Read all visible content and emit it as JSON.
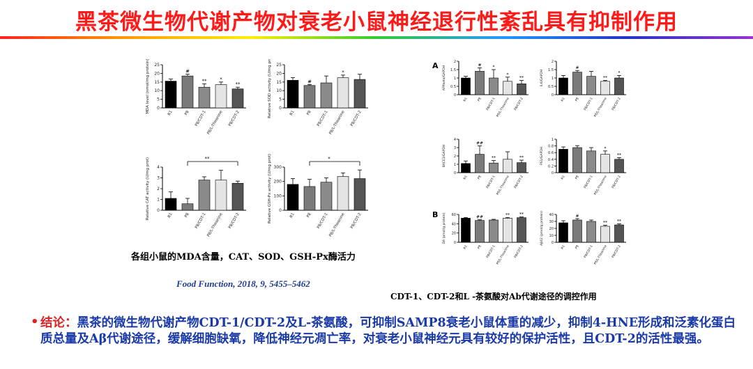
{
  "title": "黑茶微生物代谢产物对衰老小鼠神经退行性紊乱具有抑制作用",
  "left_caption": "各组小鼠的MDA含量，CAT、SOD、GSH-Px酶活力",
  "citation": "Food Function, 2018, 9, 5455–5462",
  "right_caption": "CDT-1、CDT-2和L -茶氨酸对Ab代谢途径的调控作用",
  "conclusion": {
    "keyword": "结论：",
    "text": "黑茶的微生物代谢产物CDT-1/CDT-2及L-茶氨酸，可抑制SAMP8衰老小鼠体重的减少，抑制4-HNE形成和泛素化蛋白质总量及Aβ代谢途径，缓解细胞缺氧，降低神经元凋亡率，对衰老小鼠神经元具有较好的保护活性，且CDT-2的活性最强。"
  },
  "panel_letters": [
    "A",
    "B"
  ],
  "colors": {
    "title": "#ff1a1a",
    "text_blue": "#1a3aa8",
    "citation": "#1f3c8f",
    "bullet": "#dd2222"
  },
  "chart_data": [
    {
      "type": "bar",
      "ylabel": "MDA level (nmol/mg protein)",
      "categories": [
        "R1",
        "P8",
        "P8/CDT-1",
        "P8/L-Theanine",
        "P8/CDT-2"
      ],
      "values": [
        15.5,
        18.5,
        12,
        13.5,
        11
      ],
      "errors": [
        1.2,
        1,
        2,
        1.5,
        1
      ],
      "annot": [
        "",
        "#",
        "**",
        "*",
        "**"
      ],
      "ylim": [
        0,
        25
      ],
      "yticks": [
        0,
        5,
        10,
        15,
        20,
        25
      ]
    },
    {
      "type": "bar",
      "ylabel": "Relative SOD activity (U/mg prot)",
      "categories": [
        "R1",
        "P8",
        "P8/CDT-1",
        "P8/L-Theanine",
        "P8/CDT-2"
      ],
      "values": [
        16,
        13,
        14.5,
        17.5,
        16.5
      ],
      "errors": [
        1.5,
        0.5,
        4,
        1.5,
        3
      ],
      "annot": [
        "",
        "#",
        "",
        "*",
        ""
      ],
      "ylim": [
        0,
        25
      ],
      "yticks": [
        0,
        5,
        10,
        15,
        20,
        25
      ]
    },
    {
      "type": "bar",
      "ylabel": "Relative CAT activity (U/mg prot)",
      "categories": [
        "R1",
        "P8",
        "P8/CDT-1",
        "P8/L-Theanine",
        "P8/CDT-2"
      ],
      "values": [
        1.1,
        0.6,
        2.8,
        2.8,
        2.5
      ],
      "errors": [
        0.6,
        0.5,
        0.3,
        0.9,
        0.2
      ],
      "annot": [
        "",
        "",
        "",
        "",
        ""
      ],
      "bracket_label": "**",
      "ylim": [
        0,
        4
      ],
      "yticks": [
        0,
        1,
        2,
        3,
        4
      ]
    },
    {
      "type": "bar",
      "ylabel": "Relative GSH-Px activity (U/mg prot)",
      "categories": [
        "R1",
        "P8",
        "P8/CDT-1",
        "P8/L-Theanine",
        "P8/CDT-2"
      ],
      "values": [
        180,
        165,
        195,
        235,
        220
      ],
      "errors": [
        40,
        50,
        30,
        25,
        60
      ],
      "annot": [
        "",
        "",
        "",
        "",
        ""
      ],
      "bracket_label": "*",
      "ylim": [
        0,
        300
      ],
      "yticks": [
        0,
        100,
        200,
        300
      ]
    },
    {
      "type": "bar",
      "ylabel": "APPbeta/GAPDH",
      "categories": [
        "R1",
        "P8",
        "P8/CDT-1",
        "P8/L-Theanine",
        "P8/CDT-2"
      ],
      "values": [
        1.0,
        1.4,
        1.0,
        0.8,
        0.65
      ],
      "errors": [
        0.1,
        0.2,
        0.5,
        0.25,
        0.2
      ],
      "annot": [
        "",
        "#",
        "*",
        "*",
        "**"
      ],
      "ylim": [
        0,
        2.0
      ],
      "yticks": [
        0,
        0.5,
        1.0,
        1.5,
        2.0
      ]
    },
    {
      "type": "bar",
      "ylabel": "ILK/GAPDH",
      "categories": [
        "R1",
        "P8",
        "P8/CDT-1",
        "P8/L-Theanine",
        "P8/CDT-2"
      ],
      "values": [
        1.0,
        1.35,
        1.1,
        0.8,
        1.0
      ],
      "errors": [
        0.15,
        0.1,
        0.3,
        0.05,
        0.15
      ],
      "annot": [
        "",
        "#",
        "",
        "**",
        "*"
      ],
      "ylim": [
        0,
        2.0
      ],
      "yticks": [
        0,
        0.5,
        1.0,
        1.5,
        2.0
      ]
    },
    {
      "type": "bar",
      "ylabel": "BACE1/GAPDH",
      "categories": [
        "R1",
        "P8",
        "P8/CDT-1",
        "P8/L-Theanine",
        "P8/CDT-2"
      ],
      "values": [
        1.1,
        2.2,
        1.15,
        1.6,
        1.2
      ],
      "errors": [
        0.3,
        1.0,
        0.3,
        0.9,
        0.3
      ],
      "annot": [
        "",
        "##",
        "**",
        "",
        "**"
      ],
      "ylim": [
        0,
        4
      ],
      "yticks": [
        0,
        1,
        2,
        3,
        4
      ]
    },
    {
      "type": "bar",
      "ylabel": "PS1/GAPDH",
      "categories": [
        "R1",
        "P8",
        "P8/CDT-1",
        "P8/L-Theanine",
        "P8/CDT-2"
      ],
      "values": [
        0.7,
        0.75,
        0.65,
        0.55,
        0.4
      ],
      "errors": [
        0.07,
        0.06,
        0.1,
        0.1,
        0.05
      ],
      "annot": [
        "",
        "",
        "",
        "*",
        "**"
      ],
      "ylim": [
        0,
        1.0
      ],
      "yticks": [
        0,
        0.2,
        0.4,
        0.6,
        0.8,
        1.0
      ]
    },
    {
      "type": "bar",
      "ylabel": "DA (pmol/g protein)",
      "categories": [
        "R1",
        "P8",
        "P8/CDT-1",
        "P8/L-Theanine",
        "P8/CDT-2"
      ],
      "values": [
        52,
        47,
        48,
        52,
        53
      ],
      "errors": [
        1.5,
        1.5,
        1.5,
        1.5,
        1.5
      ],
      "annot": [
        "",
        "##",
        "",
        "**",
        "**"
      ],
      "ylim": [
        0,
        60
      ],
      "yticks": [
        0,
        20,
        40,
        60
      ]
    },
    {
      "type": "bar",
      "ylabel": "Aβ42 (pmol/g protein)",
      "categories": [
        "R1",
        "P8",
        "P8/CDT-1",
        "P8/L-Theanine",
        "P8/CDT-2"
      ],
      "values": [
        28,
        32,
        30,
        23,
        25
      ],
      "errors": [
        3,
        2,
        2,
        1.5,
        1.5
      ],
      "annot": [
        "",
        "#",
        "",
        "**",
        "**"
      ],
      "ylim": [
        0,
        40
      ],
      "yticks": [
        0,
        10,
        20,
        30,
        40
      ]
    }
  ]
}
